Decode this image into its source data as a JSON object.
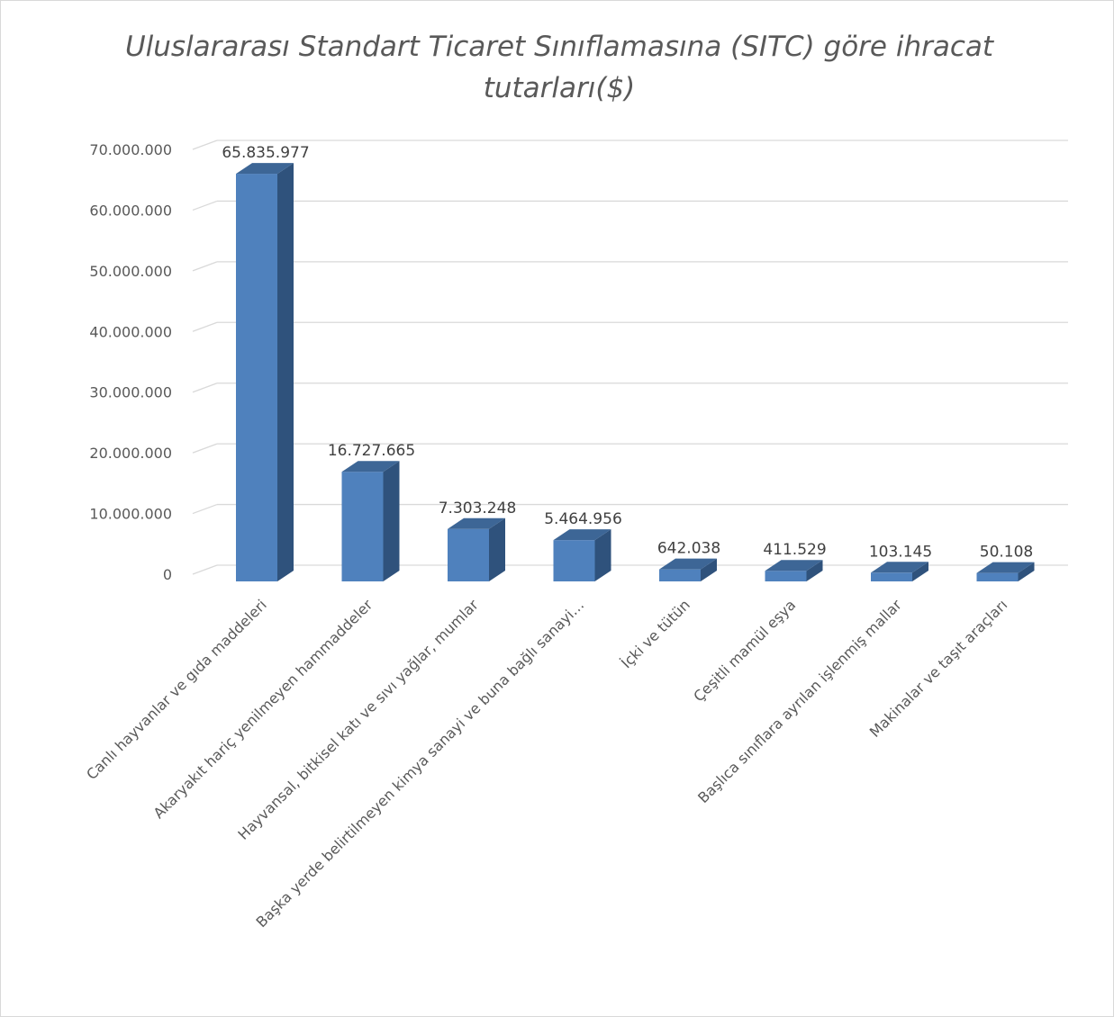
{
  "chart_data": {
    "type": "bar",
    "title": "Uluslararası Standart Ticaret Sınıflamasına (SITC) göre ihracat tutarları($)",
    "categories": [
      "Canlı hayvanlar ve gıda maddeleri",
      "Akaryakıt hariç yenilmeyen hammaddeler",
      "Hayvansal, bitkisel katı ve sıvı yağlar, mumlar",
      "Başka yerde belirtilmeyen kimya sanayi ve buna bağlı sanayi…",
      "İçki ve tütün",
      "Çeşitli mamül eşya",
      "Başlıca sınıflara ayrılan işlenmiş mallar",
      "Makinalar ve taşıt araçları"
    ],
    "values": [
      65835977,
      16727665,
      7303248,
      5464956,
      642038,
      411529,
      103145,
      50108
    ],
    "data_labels": [
      "65.835.977",
      "16.727.665",
      "7.303.248",
      "5.464.956",
      "642.038",
      "411.529",
      "103.145",
      "50.108"
    ],
    "y_ticks": [
      "0",
      "10.000.000",
      "20.000.000",
      "30.000.000",
      "40.000.000",
      "50.000.000",
      "60.000.000",
      "70.000.000"
    ],
    "y_tick_values": [
      0,
      10000000,
      20000000,
      30000000,
      40000000,
      50000000,
      60000000,
      70000000
    ],
    "ylim": [
      0,
      70000000
    ],
    "grid": true,
    "style": "3d-column",
    "colors": {
      "front": "#4f81bd",
      "side": "#2f527c",
      "top": "#3d6696",
      "grid": "#d9d9d9",
      "text": "#595959"
    }
  }
}
